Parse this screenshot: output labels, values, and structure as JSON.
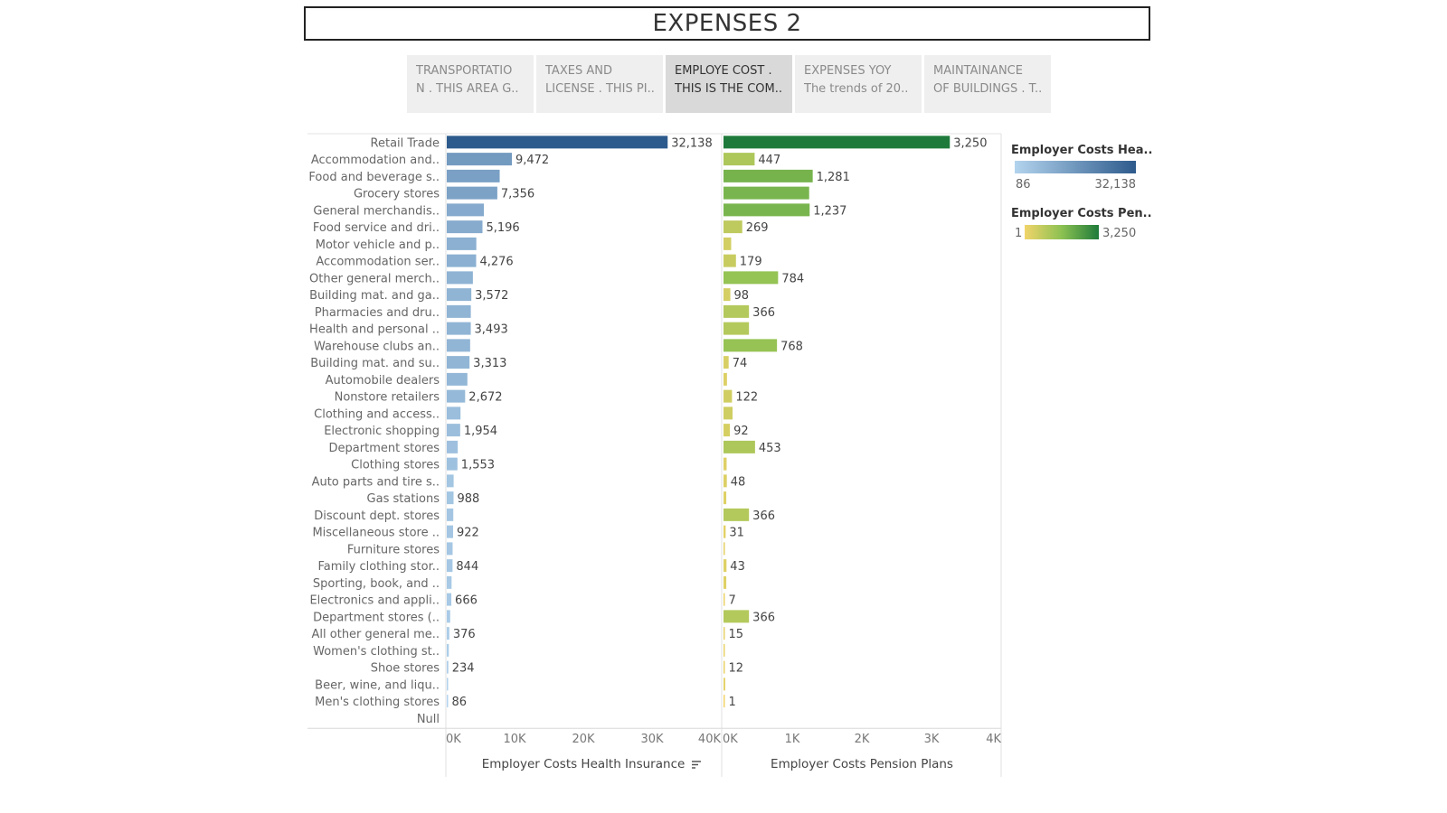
{
  "title": "EXPENSES 2",
  "tabs": [
    {
      "line1": "TRANSPORTATIO",
      "line2": "N . THIS AREA G..",
      "active": false
    },
    {
      "line1": "TAXES AND",
      "line2": "LICENSE . THIS PI..",
      "active": false
    },
    {
      "line1": "EMPLOYE COST .",
      "line2": "THIS IS THE COM..",
      "active": true
    },
    {
      "line1": "EXPENSES YOY",
      "line2": "The trends of 20..",
      "active": false
    },
    {
      "line1": "MAINTAINANCE",
      "line2": "OF BUILDINGS . T..",
      "active": false
    }
  ],
  "legend": {
    "health": {
      "title": "Employer Costs Hea..",
      "min": "86",
      "max": "32,138",
      "color_low": "#b3d4ee",
      "color_high": "#2d5a8c"
    },
    "pension": {
      "title": "Employer Costs Pen..",
      "min": "1",
      "max": "3,250",
      "color_low": "#f1d46a",
      "color_high": "#1e7a3a"
    }
  },
  "chart_data": {
    "type": "bar",
    "orientation": "horizontal",
    "categories": [
      "Retail Trade",
      "Accommodation and..",
      "Food and beverage s..",
      "Grocery stores",
      "General merchandis..",
      "Food service and dri..",
      "Motor vehicle and p..",
      "Accommodation ser..",
      "Other general merch..",
      "Building mat. and ga..",
      "Pharmacies and dru..",
      "Health and personal ..",
      "Warehouse clubs an..",
      "Building mat. and su..",
      "Automobile dealers",
      "Nonstore retailers",
      "Clothing and access..",
      "Electronic shopping",
      "Department stores",
      "Clothing stores",
      "Auto parts and tire s..",
      "Gas stations",
      "Discount dept. stores",
      "Miscellaneous store ..",
      "Furniture stores",
      "Family clothing stor..",
      "Sporting, book, and ..",
      "Electronics and appli..",
      "Department stores (..",
      "All other general me..",
      "Women's clothing st..",
      "Shoe stores",
      "Beer, wine, and liqu..",
      "Men's clothing stores",
      "Null"
    ],
    "series": [
      {
        "name": "Employer Costs Health Insurance",
        "values": [
          32138,
          9472,
          7700,
          7356,
          5400,
          5196,
          4300,
          4276,
          3800,
          3572,
          3500,
          3493,
          3400,
          3313,
          3000,
          2672,
          2000,
          1954,
          1600,
          1553,
          1000,
          988,
          950,
          922,
          850,
          844,
          700,
          666,
          500,
          376,
          300,
          234,
          150,
          86,
          null
        ],
        "labels": [
          "32,138",
          "9,472",
          null,
          "7,356",
          null,
          "5,196",
          null,
          "4,276",
          null,
          "3,572",
          null,
          "3,493",
          null,
          "3,313",
          null,
          "2,672",
          null,
          "1,954",
          null,
          "1,553",
          null,
          "988",
          null,
          "922",
          null,
          "844",
          null,
          "666",
          null,
          "376",
          null,
          "234",
          null,
          "86",
          null
        ]
      },
      {
        "name": "Employer Costs Pension Plans",
        "values": [
          3250,
          447,
          1281,
          1230,
          1237,
          269,
          110,
          179,
          784,
          98,
          366,
          366,
          768,
          74,
          50,
          122,
          130,
          92,
          453,
          45,
          48,
          40,
          366,
          31,
          20,
          43,
          40,
          7,
          366,
          15,
          10,
          12,
          25,
          1,
          null
        ],
        "labels": [
          "3,250",
          "447",
          "1,281",
          null,
          "1,237",
          "269",
          null,
          "179",
          "784",
          "98",
          "366",
          null,
          "768",
          "74",
          null,
          "122",
          null,
          "92",
          "453",
          null,
          "48",
          null,
          "366",
          "31",
          null,
          "43",
          null,
          "7",
          "366",
          "15",
          null,
          "12",
          null,
          "1",
          null
        ]
      }
    ],
    "xaxes": [
      {
        "label": "Employer Costs Health Insurance",
        "ticks": [
          "0K",
          "10K",
          "20K",
          "30K",
          "40K"
        ],
        "xlim": [
          0,
          40000
        ]
      },
      {
        "label": "Employer Costs Pension Plans",
        "ticks": [
          "0K",
          "1K",
          "2K",
          "3K",
          "4K"
        ],
        "xlim": [
          0,
          4000
        ]
      }
    ],
    "legend_position": "right",
    "sort_icon": "sort-descending-icon"
  }
}
